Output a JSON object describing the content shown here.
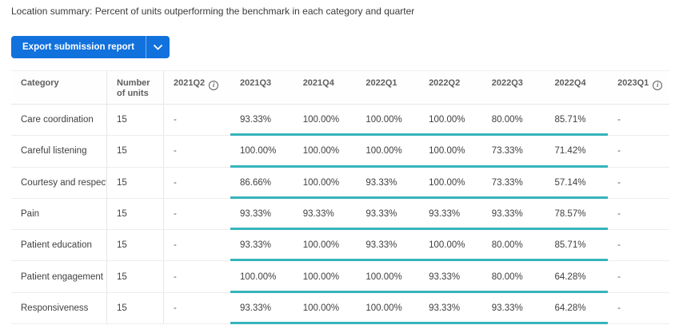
{
  "title": "Location summary: Percent of units outperforming the benchmark in each category and quarter",
  "export_button": {
    "label": "Export submission report",
    "color": "#1171DD",
    "dropdown_icon": "chevron-down-icon"
  },
  "table": {
    "highlight_color": "#36B4BC",
    "info_icon": "info-circle-icon",
    "columns": [
      {
        "label": "Category",
        "info": false
      },
      {
        "label": "Number of units",
        "info": false
      },
      {
        "label": "2021Q2",
        "info": true
      },
      {
        "label": "2021Q3",
        "info": false
      },
      {
        "label": "2021Q4",
        "info": false
      },
      {
        "label": "2022Q1",
        "info": false
      },
      {
        "label": "2022Q2",
        "info": false
      },
      {
        "label": "2022Q3",
        "info": false
      },
      {
        "label": "2022Q4",
        "info": false
      },
      {
        "label": "2023Q1",
        "info": true
      }
    ],
    "rows": [
      {
        "category": "Care coordination",
        "units": "15",
        "values": [
          "-",
          "93.33%",
          "100.00%",
          "100.00%",
          "100.00%",
          "80.00%",
          "85.71%",
          "-"
        ]
      },
      {
        "category": "Careful listening",
        "units": "15",
        "values": [
          "-",
          "100.00%",
          "100.00%",
          "100.00%",
          "100.00%",
          "73.33%",
          "71.42%",
          "-"
        ]
      },
      {
        "category": "Courtesy and respect",
        "units": "15",
        "values": [
          "-",
          "86.66%",
          "100.00%",
          "93.33%",
          "100.00%",
          "73.33%",
          "57.14%",
          "-"
        ]
      },
      {
        "category": "Pain",
        "units": "15",
        "values": [
          "-",
          "93.33%",
          "93.33%",
          "93.33%",
          "93.33%",
          "93.33%",
          "78.57%",
          "-"
        ]
      },
      {
        "category": "Patient education",
        "units": "15",
        "values": [
          "-",
          "93.33%",
          "100.00%",
          "93.33%",
          "100.00%",
          "80.00%",
          "85.71%",
          "-"
        ]
      },
      {
        "category": "Patient engagement",
        "units": "15",
        "values": [
          "-",
          "100.00%",
          "100.00%",
          "100.00%",
          "93.33%",
          "80.00%",
          "64.28%",
          "-"
        ]
      },
      {
        "category": "Responsiveness",
        "units": "15",
        "values": [
          "-",
          "93.33%",
          "100.00%",
          "100.00%",
          "93.33%",
          "93.33%",
          "64.28%",
          "-"
        ]
      }
    ]
  }
}
